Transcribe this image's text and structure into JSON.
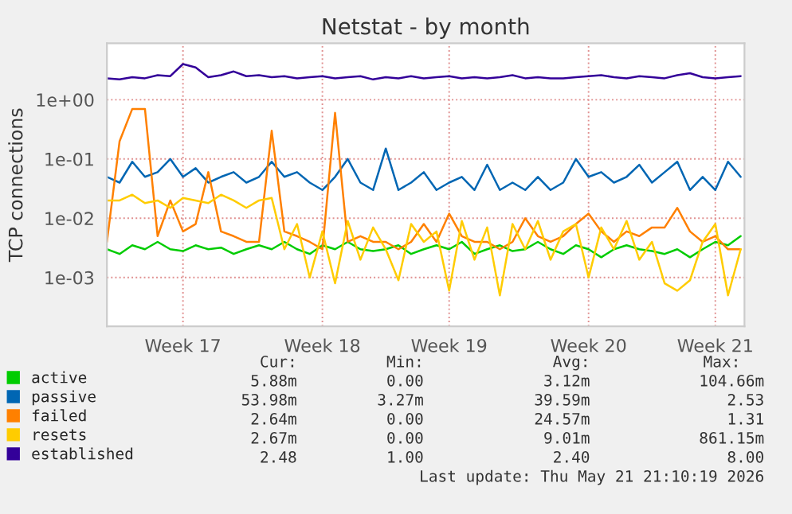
{
  "chart_data": {
    "type": "line",
    "title": "Netstat - by month",
    "ylabel": "TCP connections",
    "categories": [
      null,
      null,
      null,
      null,
      null,
      null,
      "Week 17",
      null,
      null,
      null,
      null,
      null,
      null,
      null,
      null,
      null,
      null,
      "Week 18",
      null,
      null,
      null,
      null,
      null,
      null,
      null,
      null,
      null,
      "Week 19",
      null,
      null,
      null,
      null,
      null,
      null,
      null,
      null,
      null,
      null,
      "Week 20",
      null,
      null,
      null,
      null,
      null,
      null,
      null,
      null,
      null,
      "Week 21",
      null,
      null
    ],
    "series": [
      {
        "name": "active",
        "color": "#00cc00",
        "values": [
          0.003,
          0.0025,
          0.0035,
          0.003,
          0.004,
          0.003,
          0.0028,
          0.0035,
          0.003,
          0.0032,
          0.0025,
          0.003,
          0.0035,
          0.003,
          0.004,
          0.003,
          0.0025,
          0.0035,
          0.003,
          0.004,
          0.003,
          0.0028,
          0.003,
          0.0035,
          0.0025,
          0.003,
          0.0035,
          0.003,
          0.004,
          0.0025,
          0.003,
          0.0035,
          0.0028,
          0.003,
          0.004,
          0.003,
          0.0025,
          0.0035,
          0.003,
          0.0022,
          0.003,
          0.0035,
          0.003,
          0.0028,
          0.0025,
          0.003,
          0.0022,
          0.003,
          0.004,
          0.0035,
          0.005
        ]
      },
      {
        "name": "passive",
        "color": "#0066b3",
        "values": [
          0.05,
          0.04,
          0.09,
          0.05,
          0.06,
          0.1,
          0.05,
          0.07,
          0.04,
          0.05,
          0.06,
          0.04,
          0.05,
          0.09,
          0.05,
          0.06,
          0.04,
          0.03,
          0.05,
          0.1,
          0.04,
          0.03,
          0.15,
          0.03,
          0.04,
          0.06,
          0.03,
          0.04,
          0.05,
          0.03,
          0.08,
          0.03,
          0.04,
          0.03,
          0.05,
          0.03,
          0.04,
          0.1,
          0.05,
          0.06,
          0.04,
          0.05,
          0.08,
          0.04,
          0.06,
          0.09,
          0.03,
          0.05,
          0.03,
          0.09,
          0.05
        ]
      },
      {
        "name": "failed",
        "color": "#ff8000",
        "values": [
          0.004,
          0.2,
          0.7,
          0.7,
          0.005,
          0.02,
          0.006,
          0.008,
          0.06,
          0.006,
          0.005,
          0.004,
          0.004,
          0.3,
          0.006,
          0.005,
          0.004,
          0.003,
          0.6,
          0.004,
          0.005,
          0.004,
          0.004,
          0.003,
          0.004,
          0.008,
          0.004,
          0.012,
          0.005,
          0.004,
          0.004,
          0.003,
          0.004,
          0.01,
          0.005,
          0.004,
          0.005,
          0.008,
          0.012,
          0.006,
          0.004,
          0.006,
          0.005,
          0.007,
          0.007,
          0.015,
          0.006,
          0.004,
          0.005,
          0.003,
          0.003
        ]
      },
      {
        "name": "resets",
        "color": "#ffcc00",
        "values": [
          0.02,
          0.02,
          0.025,
          0.018,
          0.02,
          0.015,
          0.022,
          0.02,
          0.018,
          0.025,
          0.02,
          0.015,
          0.02,
          0.022,
          0.003,
          0.008,
          0.001,
          0.006,
          0.0008,
          0.009,
          0.002,
          0.007,
          0.003,
          0.0009,
          0.008,
          0.004,
          0.006,
          0.0006,
          0.009,
          0.002,
          0.007,
          0.0005,
          0.008,
          0.003,
          0.009,
          0.002,
          0.006,
          0.008,
          0.001,
          0.007,
          0.003,
          0.009,
          0.002,
          0.004,
          0.0008,
          0.0006,
          0.0009,
          0.004,
          0.008,
          0.0005,
          0.003
        ]
      },
      {
        "name": "established",
        "color": "#330099",
        "values": [
          2.3,
          2.2,
          2.4,
          2.3,
          2.6,
          2.5,
          4.0,
          3.5,
          2.4,
          2.6,
          3.0,
          2.5,
          2.6,
          2.4,
          2.5,
          2.3,
          2.4,
          2.5,
          2.3,
          2.4,
          2.5,
          2.2,
          2.4,
          2.3,
          2.5,
          2.3,
          2.4,
          2.5,
          2.3,
          2.4,
          2.3,
          2.4,
          2.6,
          2.3,
          2.4,
          2.3,
          2.3,
          2.4,
          2.5,
          2.6,
          2.4,
          2.3,
          2.5,
          2.4,
          2.3,
          2.6,
          2.8,
          2.4,
          2.3,
          2.4,
          2.5
        ]
      }
    ],
    "log": "y",
    "ylim": [
      0.00015,
      9
    ],
    "yticks": [
      {
        "value": 0.001,
        "label": "1e-03"
      },
      {
        "value": 0.01,
        "label": "1e-02"
      },
      {
        "value": 0.1,
        "label": "1e-01"
      },
      {
        "value": 1,
        "label": "1e+00"
      }
    ],
    "grid": true,
    "legend": "bottom",
    "annotations": [
      "Cur:",
      "Min:",
      "Avg:",
      "Max:",
      "5.88m",
      "0.00",
      "3.12m",
      "104.66m",
      "53.98m",
      "3.27m",
      "39.59m",
      "2.53",
      "2.64m",
      "0.00",
      "24.57m",
      "1.31",
      "2.67m",
      "0.00",
      "9.01m",
      "861.15m",
      "2.48",
      "1.00",
      "2.40",
      "8.00",
      "Last update: Thu May 21 21:10:19 2026"
    ]
  }
}
